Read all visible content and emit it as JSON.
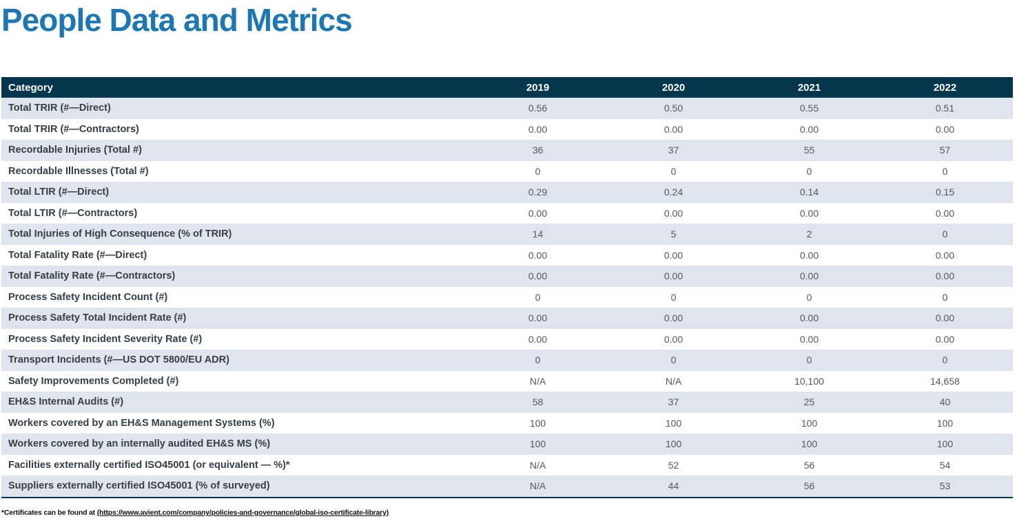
{
  "page_title": "People Data and Metrics",
  "colors": {
    "title_blue": "#1b78b5",
    "header_navy": "#04374e",
    "row_alt_lavender": "#e0e4ee",
    "category_text": "#333f48",
    "value_text": "#54575c"
  },
  "table": {
    "columns": [
      "Category",
      "2019",
      "2020",
      "2021",
      "2022"
    ],
    "rows": [
      {
        "category": "Total TRIR (#—Direct)",
        "values": [
          "0.56",
          "0.50",
          "0.55",
          "0.51"
        ]
      },
      {
        "category": "Total TRIR (#—Contractors)",
        "values": [
          "0.00",
          "0.00",
          "0.00",
          "0.00"
        ]
      },
      {
        "category": "Recordable Injuries (Total #)",
        "values": [
          "36",
          "37",
          "55",
          "57"
        ]
      },
      {
        "category": "Recordable Illnesses (Total #)",
        "values": [
          "0",
          "0",
          "0",
          "0"
        ]
      },
      {
        "category": "Total LTIR (#—Direct)",
        "values": [
          "0.29",
          "0.24",
          "0.14",
          "0.15"
        ]
      },
      {
        "category": "Total LTIR (#—Contractors)",
        "values": [
          "0.00",
          "0.00",
          "0.00",
          "0.00"
        ]
      },
      {
        "category": "Total Injuries of High Consequence (% of TRIR)",
        "values": [
          "14",
          "5",
          "2",
          "0"
        ]
      },
      {
        "category": "Total Fatality Rate (#—Direct)",
        "values": [
          "0.00",
          "0.00",
          "0.00",
          "0.00"
        ]
      },
      {
        "category": "Total Fatality Rate (#—Contractors)",
        "values": [
          "0.00",
          "0.00",
          "0.00",
          "0.00"
        ]
      },
      {
        "category": "Process Safety Incident Count (#)",
        "values": [
          "0",
          "0",
          "0",
          "0"
        ]
      },
      {
        "category": "Process Safety Total Incident Rate (#)",
        "values": [
          "0.00",
          "0.00",
          "0.00",
          "0.00"
        ]
      },
      {
        "category": "Process Safety Incident Severity Rate (#)",
        "values": [
          "0.00",
          "0.00",
          "0.00",
          "0.00"
        ]
      },
      {
        "category": "Transport Incidents (#—US DOT 5800/EU ADR)",
        "values": [
          "0",
          "0",
          "0",
          "0"
        ]
      },
      {
        "category": "Safety Improvements Completed (#)",
        "values": [
          "N/A",
          "N/A",
          "10,100",
          "14,658"
        ]
      },
      {
        "category": "EH&S Internal Audits (#)",
        "values": [
          "58",
          "37",
          "25",
          "40"
        ]
      },
      {
        "category": "Workers covered by an EH&S Management Systems (%)",
        "values": [
          "100",
          "100",
          "100",
          "100"
        ]
      },
      {
        "category": "Workers covered by an internally audited EH&S MS (%)",
        "values": [
          "100",
          "100",
          "100",
          "100"
        ]
      },
      {
        "category": "Facilities externally certified ISO45001 (or equivalent — %)*",
        "values": [
          "N/A",
          "52",
          "56",
          "54"
        ]
      },
      {
        "category": "Suppliers externally certified ISO45001 (% of surveyed)",
        "values": [
          "N/A",
          "44",
          "56",
          "53"
        ]
      }
    ]
  },
  "footnote": {
    "prefix": "*Certificates can be found at ",
    "link": "(https://www.avient.com/company/policies-and-governance/global-iso-certificate-library)"
  }
}
